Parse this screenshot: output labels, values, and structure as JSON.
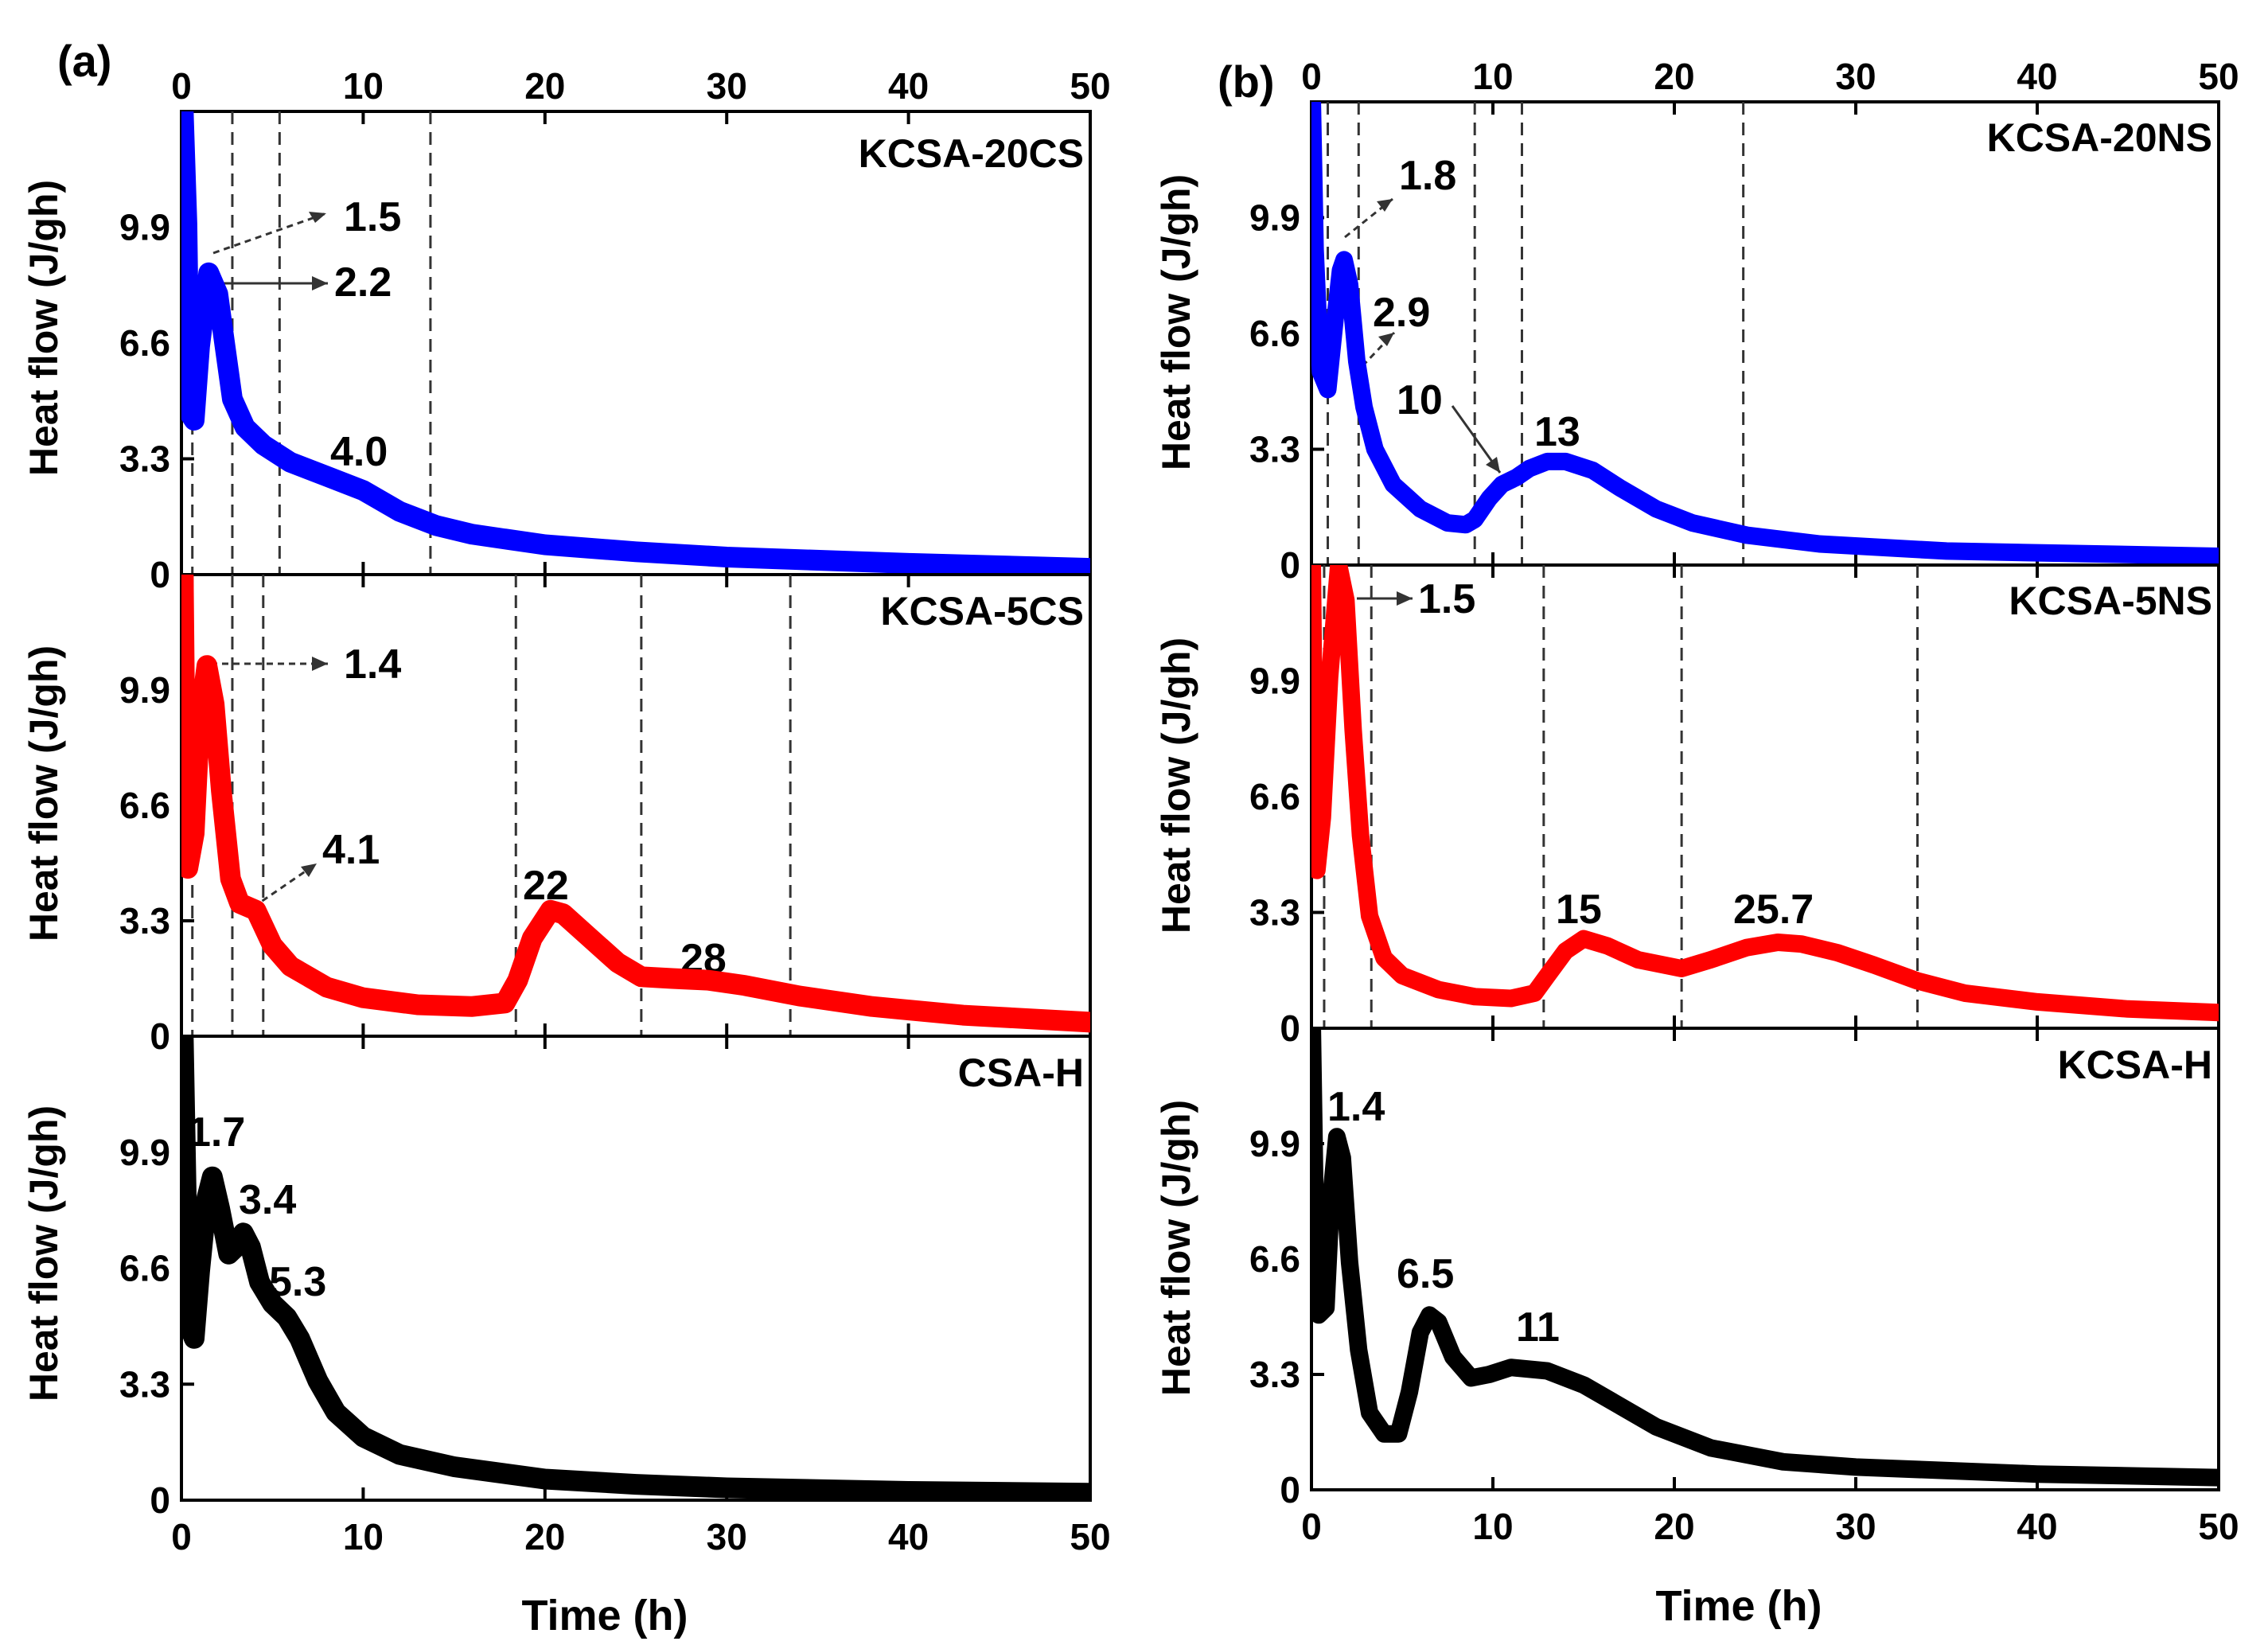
{
  "chart_data": [
    {
      "type": "line",
      "panel_label": "(a)",
      "xlabel": "Time (h)",
      "xlim": [
        0,
        50
      ],
      "x_ticks": [
        "0",
        "10",
        "20",
        "30",
        "40",
        "50"
      ],
      "subplots": [
        {
          "name": "KCSA-20CS",
          "color": "#0000ff",
          "ylabel": "Heat flow (J/gh)",
          "ylim": [
            0,
            13.2
          ],
          "y_ticks": [
            "0",
            "3.3",
            "6.6",
            "9.9"
          ],
          "dashed_lines_x": [
            0.6,
            2.8,
            5.4,
            13.7
          ],
          "points": [
            [
              0.1,
              13.2
            ],
            [
              0.3,
              10
            ],
            [
              0.45,
              4.6
            ],
            [
              0.7,
              4.4
            ],
            [
              1.0,
              6.5
            ],
            [
              1.5,
              8.6
            ],
            [
              2.0,
              8.0
            ],
            [
              2.4,
              6.5
            ],
            [
              2.8,
              5.0
            ],
            [
              3.5,
              4.2
            ],
            [
              4.5,
              3.7
            ],
            [
              6,
              3.2
            ],
            [
              8,
              2.8
            ],
            [
              10,
              2.4
            ],
            [
              12,
              1.8
            ],
            [
              14,
              1.4
            ],
            [
              16,
              1.15
            ],
            [
              20,
              0.85
            ],
            [
              25,
              0.65
            ],
            [
              30,
              0.5
            ],
            [
              40,
              0.32
            ],
            [
              50,
              0.18
            ]
          ],
          "annotations": [
            "1.5",
            "2.2",
            "4.0"
          ]
        },
        {
          "name": "KCSA-5CS",
          "color": "#ff0000",
          "ylabel": "Heat flow (J/gh)",
          "ylim": [
            0,
            13.2
          ],
          "y_ticks": [
            "0",
            "3.3",
            "6.6",
            "9.9"
          ],
          "dashed_lines_x": [
            0.6,
            2.8,
            4.5,
            18.4,
            25.3,
            33.5
          ],
          "points": [
            [
              0.1,
              13.2
            ],
            [
              0.2,
              8
            ],
            [
              0.35,
              4.8
            ],
            [
              0.7,
              5.8
            ],
            [
              1.0,
              9
            ],
            [
              1.4,
              10.6
            ],
            [
              1.8,
              9.5
            ],
            [
              2.2,
              7
            ],
            [
              2.7,
              4.5
            ],
            [
              3.2,
              3.8
            ],
            [
              4.1,
              3.6
            ],
            [
              5,
              2.6
            ],
            [
              6,
              2.0
            ],
            [
              8,
              1.4
            ],
            [
              10,
              1.1
            ],
            [
              13,
              0.9
            ],
            [
              16,
              0.85
            ],
            [
              17.8,
              0.95
            ],
            [
              18.5,
              1.6
            ],
            [
              19.3,
              2.8
            ],
            [
              20.3,
              3.6
            ],
            [
              21,
              3.5
            ],
            [
              22.5,
              2.8
            ],
            [
              24,
              2.1
            ],
            [
              25.3,
              1.7
            ],
            [
              27,
              1.65
            ],
            [
              29,
              1.6
            ],
            [
              31,
              1.45
            ],
            [
              34,
              1.15
            ],
            [
              38,
              0.85
            ],
            [
              43,
              0.6
            ],
            [
              50,
              0.4
            ]
          ],
          "annotations": [
            "1.4",
            "4.1",
            "22",
            "28"
          ]
        },
        {
          "name": "CSA-H",
          "color": "#000000",
          "ylabel": "Heat flow (J/gh)",
          "ylim": [
            0,
            13.2
          ],
          "y_ticks": [
            "0",
            "3.3",
            "6.6",
            "9.9"
          ],
          "dashed_lines_x": [],
          "points": [
            [
              0.1,
              13.2
            ],
            [
              0.25,
              9
            ],
            [
              0.4,
              5
            ],
            [
              0.7,
              4.6
            ],
            [
              1.0,
              6.5
            ],
            [
              1.4,
              8.6
            ],
            [
              1.7,
              9.2
            ],
            [
              2.1,
              8.3
            ],
            [
              2.6,
              7.0
            ],
            [
              3.0,
              7.2
            ],
            [
              3.4,
              7.6
            ],
            [
              3.8,
              7.2
            ],
            [
              4.3,
              6.2
            ],
            [
              5.0,
              5.6
            ],
            [
              5.8,
              5.2
            ],
            [
              6.5,
              4.6
            ],
            [
              7.5,
              3.4
            ],
            [
              8.5,
              2.5
            ],
            [
              10,
              1.8
            ],
            [
              12,
              1.3
            ],
            [
              15,
              0.95
            ],
            [
              20,
              0.6
            ],
            [
              25,
              0.45
            ],
            [
              30,
              0.35
            ],
            [
              40,
              0.25
            ],
            [
              50,
              0.2
            ]
          ],
          "annotations": [
            "1.7",
            "3.4",
            "5.3"
          ]
        }
      ]
    },
    {
      "type": "line",
      "panel_label": "(b)",
      "xlabel": "Time (h)",
      "xlim": [
        0,
        50
      ],
      "x_ticks": [
        "0",
        "10",
        "20",
        "30",
        "40",
        "50"
      ],
      "subplots": [
        {
          "name": "KCSA-20NS",
          "color": "#0000ff",
          "ylabel": "Heat flow (J/gh)",
          "ylim": [
            0,
            13.2
          ],
          "y_ticks": [
            "0",
            "3.3",
            "6.6",
            "9.9"
          ],
          "dashed_lines_x": [
            0.9,
            2.6,
            9.0,
            11.6,
            23.8
          ],
          "points": [
            [
              0.05,
              13.2
            ],
            [
              0.2,
              9
            ],
            [
              0.5,
              5.5
            ],
            [
              0.9,
              5.0
            ],
            [
              1.3,
              7.0
            ],
            [
              1.6,
              8.4
            ],
            [
              1.8,
              8.7
            ],
            [
              2.1,
              8.0
            ],
            [
              2.5,
              5.8
            ],
            [
              2.9,
              4.5
            ],
            [
              3.5,
              3.3
            ],
            [
              4.5,
              2.3
            ],
            [
              6,
              1.6
            ],
            [
              7.5,
              1.2
            ],
            [
              8.5,
              1.15
            ],
            [
              9.0,
              1.3
            ],
            [
              9.8,
              1.9
            ],
            [
              10.5,
              2.3
            ],
            [
              11.3,
              2.5
            ],
            [
              12,
              2.75
            ],
            [
              13,
              2.95
            ],
            [
              14,
              2.95
            ],
            [
              15.5,
              2.7
            ],
            [
              17,
              2.2
            ],
            [
              19,
              1.6
            ],
            [
              21,
              1.2
            ],
            [
              24,
              0.85
            ],
            [
              28,
              0.6
            ],
            [
              35,
              0.4
            ],
            [
              50,
              0.25
            ]
          ],
          "annotations": [
            "1.8",
            "2.9",
            "10",
            "13"
          ]
        },
        {
          "name": "KCSA-5NS",
          "color": "#ff0000",
          "ylabel": "Heat flow (J/gh)",
          "ylim": [
            0,
            13.2
          ],
          "y_ticks": [
            "0",
            "3.3",
            "6.6",
            "9.9"
          ],
          "dashed_lines_x": [
            0.7,
            3.3,
            12.8,
            20.4,
            33.4
          ],
          "points": [
            [
              0.05,
              13.2
            ],
            [
              0.15,
              8
            ],
            [
              0.3,
              4.5
            ],
            [
              0.6,
              6
            ],
            [
              1.0,
              10
            ],
            [
              1.5,
              13.2
            ],
            [
              1.9,
              12.2
            ],
            [
              2.3,
              8.5
            ],
            [
              2.7,
              5.5
            ],
            [
              3.2,
              3.2
            ],
            [
              4,
              2.0
            ],
            [
              5,
              1.5
            ],
            [
              7,
              1.1
            ],
            [
              9,
              0.9
            ],
            [
              11,
              0.85
            ],
            [
              12.3,
              1.0
            ],
            [
              13,
              1.5
            ],
            [
              14,
              2.2
            ],
            [
              15,
              2.55
            ],
            [
              16.3,
              2.35
            ],
            [
              18,
              1.95
            ],
            [
              20.4,
              1.7
            ],
            [
              22,
              1.95
            ],
            [
              24,
              2.3
            ],
            [
              25.7,
              2.45
            ],
            [
              27,
              2.4
            ],
            [
              29,
              2.15
            ],
            [
              31,
              1.8
            ],
            [
              33.4,
              1.35
            ],
            [
              36,
              1.0
            ],
            [
              40,
              0.75
            ],
            [
              45,
              0.55
            ],
            [
              50,
              0.45
            ]
          ],
          "annotations": [
            "1.5",
            "15",
            "25.7"
          ]
        },
        {
          "name": "KCSA-H",
          "color": "#000000",
          "ylabel": "Heat flow (J/gh)",
          "ylim": [
            0,
            13.2
          ],
          "y_ticks": [
            "0",
            "3.3",
            "6.6",
            "9.9"
          ],
          "dashed_lines_x": [],
          "points": [
            [
              0.05,
              13.2
            ],
            [
              0.2,
              8
            ],
            [
              0.4,
              5
            ],
            [
              0.8,
              5.2
            ],
            [
              1.1,
              8.5
            ],
            [
              1.4,
              10.1
            ],
            [
              1.7,
              9.5
            ],
            [
              2.1,
              6.5
            ],
            [
              2.6,
              4.0
            ],
            [
              3.2,
              2.2
            ],
            [
              4,
              1.6
            ],
            [
              4.8,
              1.6
            ],
            [
              5.4,
              2.8
            ],
            [
              6.0,
              4.5
            ],
            [
              6.5,
              5.0
            ],
            [
              7.0,
              4.8
            ],
            [
              7.8,
              3.8
            ],
            [
              8.8,
              3.2
            ],
            [
              9.8,
              3.3
            ],
            [
              11,
              3.5
            ],
            [
              13,
              3.4
            ],
            [
              15,
              3.0
            ],
            [
              17,
              2.4
            ],
            [
              19,
              1.8
            ],
            [
              22,
              1.2
            ],
            [
              26,
              0.8
            ],
            [
              30,
              0.65
            ],
            [
              40,
              0.45
            ],
            [
              50,
              0.35
            ]
          ],
          "annotations": [
            "1.4",
            "6.5",
            "11"
          ]
        }
      ]
    }
  ]
}
